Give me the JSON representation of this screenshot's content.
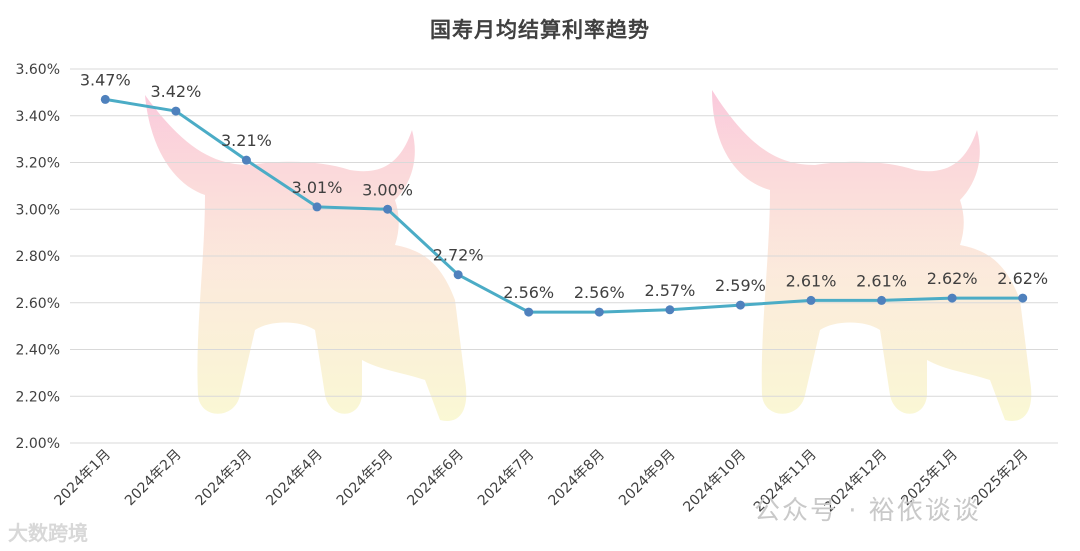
{
  "chart_data": {
    "type": "line",
    "title": "国寿月均结算利率趋势",
    "xlabel": "",
    "ylabel": "",
    "categories": [
      "2024年1月",
      "2024年2月",
      "2024年3月",
      "2024年4月",
      "2024年5月",
      "2024年6月",
      "2024年7月",
      "2024年8月",
      "2024年9月",
      "2024年10月",
      "2024年11月",
      "2024年12月",
      "2025年1月",
      "2025年2月"
    ],
    "series": [
      {
        "values": [
          3.47,
          3.42,
          3.21,
          3.01,
          3.0,
          2.72,
          2.56,
          2.56,
          2.57,
          2.59,
          2.61,
          2.61,
          2.62,
          2.62
        ],
        "labels": [
          "3.47%",
          "3.42%",
          "3.21%",
          "3.01%",
          "3.00%",
          "2.72%",
          "2.56%",
          "2.56%",
          "2.57%",
          "2.59%",
          "2.61%",
          "2.61%",
          "2.62%",
          "2.62%"
        ]
      }
    ],
    "y_ticks": [
      "2.00%",
      "2.20%",
      "2.40%",
      "2.60%",
      "2.80%",
      "3.00%",
      "3.20%",
      "3.40%",
      "3.60%"
    ],
    "ylim": [
      2.0,
      3.6
    ],
    "grid": true,
    "legend": "none",
    "colors": {
      "line": "#4bacc6",
      "marker": "#4f81bd",
      "grid": "#d9d9d9",
      "text": "#404040"
    }
  },
  "watermarks": {
    "left": "大数跨境",
    "right": "公众号 · 裕依谈谈"
  }
}
